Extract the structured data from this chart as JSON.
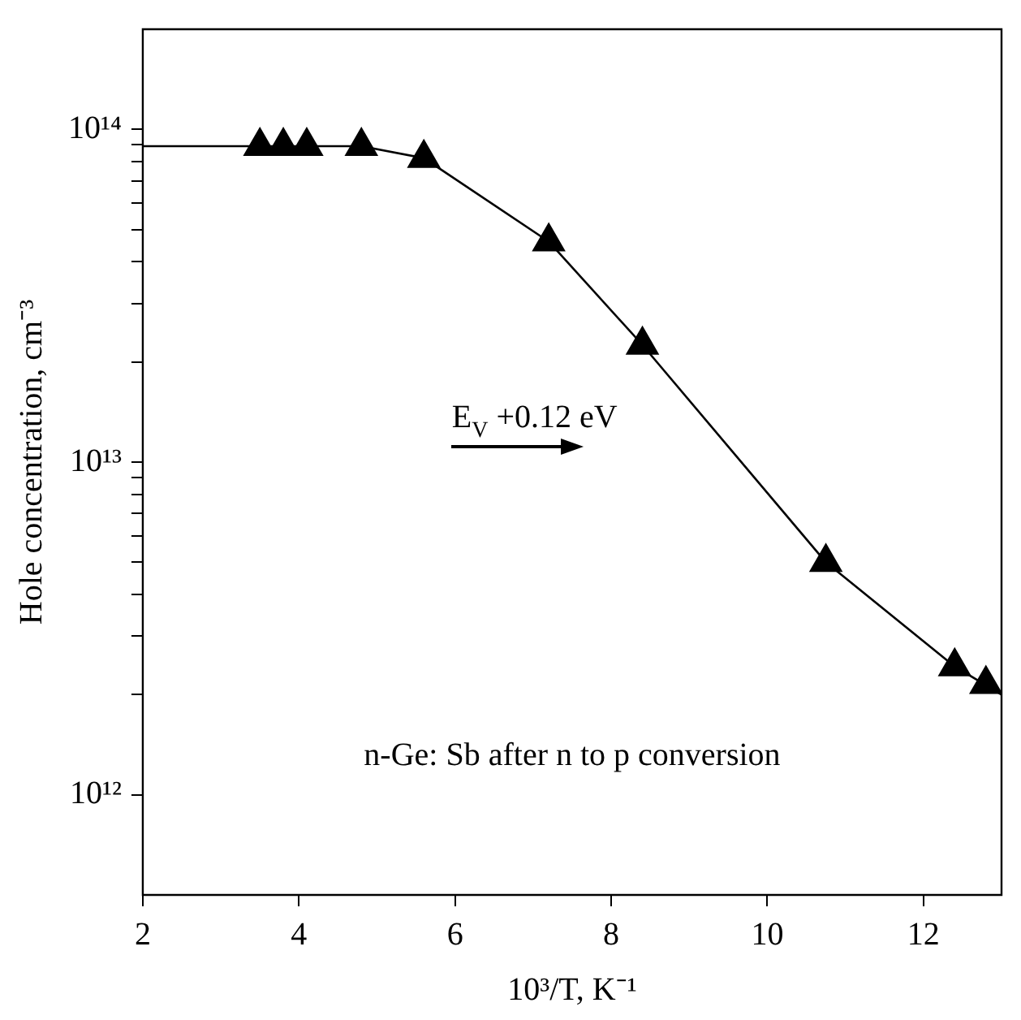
{
  "chart_data": {
    "type": "scatter",
    "xlabel": "10³/T, K⁻¹",
    "ylabel": "Hole concentration, cm⁻³",
    "annotations": [
      "E$_{V}$ +0.12 eV",
      "n-Ge: Sb after n to p conversion"
    ],
    "log": "y",
    "xlim": [
      2,
      13
    ],
    "xticks": [
      2,
      4,
      6,
      8,
      10,
      12
    ],
    "ylim": [
      500000000000.0,
      200000000000000.0
    ],
    "yticks": [
      {
        "value": 1000000000000.0,
        "label": "10¹²"
      },
      {
        "value": 2000000000000.0,
        "label": null
      },
      {
        "value": 3000000000000.0,
        "label": null
      },
      {
        "value": 4000000000000.0,
        "label": null
      },
      {
        "value": 5000000000000.0,
        "label": null
      },
      {
        "value": 6000000000000.0,
        "label": null
      },
      {
        "value": 7000000000000.0,
        "label": null
      },
      {
        "value": 8000000000000.0,
        "label": null
      },
      {
        "value": 9000000000000.0,
        "label": null
      },
      {
        "value": 10000000000000.0,
        "label": "10¹³"
      },
      {
        "value": 20000000000000.0,
        "label": null
      },
      {
        "value": 30000000000000.0,
        "label": null
      },
      {
        "value": 40000000000000.0,
        "label": null
      },
      {
        "value": 50000000000000.0,
        "label": null
      },
      {
        "value": 60000000000000.0,
        "label": null
      },
      {
        "value": 70000000000000.0,
        "label": null
      },
      {
        "value": 80000000000000.0,
        "label": null
      },
      {
        "value": 90000000000000.0,
        "label": null
      },
      {
        "value": 100000000000000.0,
        "label": "10¹⁴"
      }
    ],
    "grid": false,
    "legend": false,
    "marker": "triangle",
    "series": [
      {
        "color": "#000000",
        "x": [
          3.5,
          3.8,
          4.1,
          4.8,
          5.6,
          7.2,
          8.4,
          10.75,
          12.4,
          12.8
        ],
        "values": [
          89000000000000.0,
          89000000000000.0,
          89000000000000.0,
          89000000000000.0,
          82000000000000.0,
          46000000000000.0,
          22500000000000.0,
          5000000000000.0,
          2430000000000.0,
          2150000000000.0
        ]
      },
      {
        "type": "line",
        "marker": "none",
        "color": "#000000",
        "x": [
          2,
          4.8,
          5.6,
          7.2,
          8.4,
          10.75,
          12.4,
          13
        ],
        "values": [
          89000000000000.0,
          89000000000000.0,
          82000000000000.0,
          46000000000000.0,
          22500000000000.0,
          5000000000000.0,
          2430000000000.0,
          2000000000000.0
        ]
      }
    ]
  }
}
